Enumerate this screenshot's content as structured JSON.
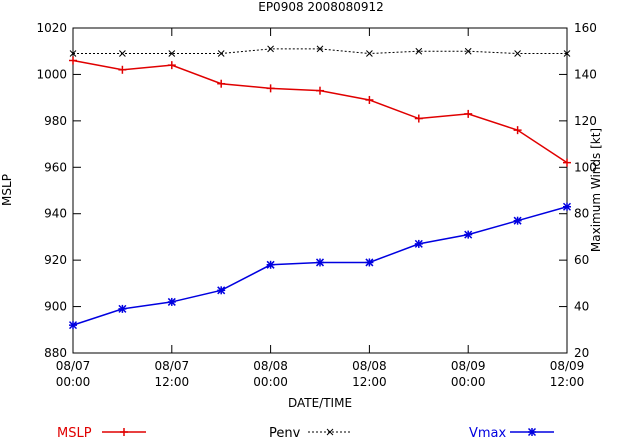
{
  "chart_data": {
    "type": "line",
    "title": "EP0908 2008080912",
    "xlabel": "DATE/TIME",
    "ylabel": "MSLP",
    "y2label": "Maximum Winds [kt]",
    "x_ticks": [
      "08/07 00:00",
      "08/07 12:00",
      "08/08 00:00",
      "08/08 12:00",
      "08/09 00:00",
      "08/09 12:00"
    ],
    "x_hours": [
      0,
      6,
      12,
      18,
      24,
      30,
      36,
      42,
      48,
      54,
      60
    ],
    "xlim_hours": [
      0,
      60
    ],
    "ylim": [
      880,
      1020
    ],
    "y_ticks": [
      880,
      900,
      920,
      940,
      960,
      980,
      1000,
      1020
    ],
    "y2lim": [
      20,
      160
    ],
    "y2_ticks": [
      20,
      40,
      60,
      80,
      100,
      120,
      140,
      160
    ],
    "grid": false,
    "legend_position": "bottom",
    "series": [
      {
        "name": "MSLP",
        "axis": "left",
        "color": "#e00000",
        "marker": "plus",
        "dash": "solid",
        "values": [
          1006,
          1002,
          1004,
          996,
          994,
          993,
          989,
          981,
          983,
          976,
          962
        ]
      },
      {
        "name": "Penv",
        "axis": "left",
        "color": "#000000",
        "marker": "x",
        "dash": "dotted",
        "values": [
          1009,
          1009,
          1009,
          1009,
          1011,
          1011,
          1009,
          1010,
          1010,
          1009,
          1009
        ]
      },
      {
        "name": "Vmax",
        "axis": "right",
        "color": "#0000e0",
        "marker": "star",
        "dash": "solid",
        "values": [
          32,
          39,
          42,
          47,
          58,
          59,
          59,
          67,
          71,
          77,
          83
        ]
      }
    ]
  }
}
